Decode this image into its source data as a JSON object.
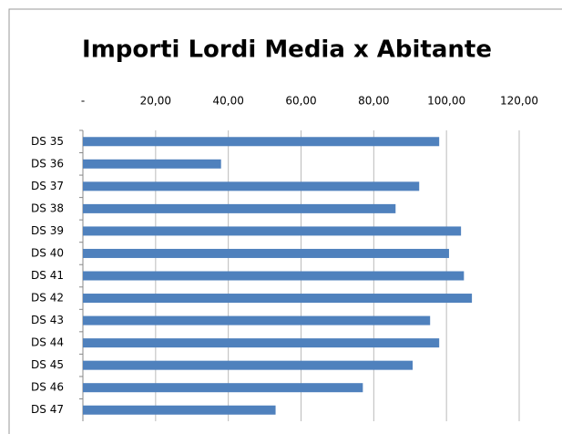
{
  "chart_data": {
    "type": "bar",
    "orientation": "horizontal",
    "title": "Importi Lordi Media x Abitante",
    "categories": [
      "DS 35",
      "DS 36",
      "DS 37",
      "DS 38",
      "DS 39",
      "DS 40",
      "DS 41",
      "DS 42",
      "DS 43",
      "DS 44",
      "DS 45",
      "DS 46",
      "DS 47"
    ],
    "values": [
      98,
      38,
      92.5,
      86,
      104,
      100.7,
      104.8,
      107,
      95.5,
      98,
      90.7,
      77,
      53
    ],
    "color": "#4f81bd",
    "xlim": [
      0,
      120
    ],
    "xticks": [
      {
        "value": 0,
        "label": "-"
      },
      {
        "value": 20,
        "label": "20,00"
      },
      {
        "value": 40,
        "label": "40,00"
      },
      {
        "value": 60,
        "label": "60,00"
      },
      {
        "value": 80,
        "label": "80,00"
      },
      {
        "value": 100,
        "label": "100,00"
      },
      {
        "value": 120,
        "label": "120,00"
      }
    ],
    "grid": true
  }
}
